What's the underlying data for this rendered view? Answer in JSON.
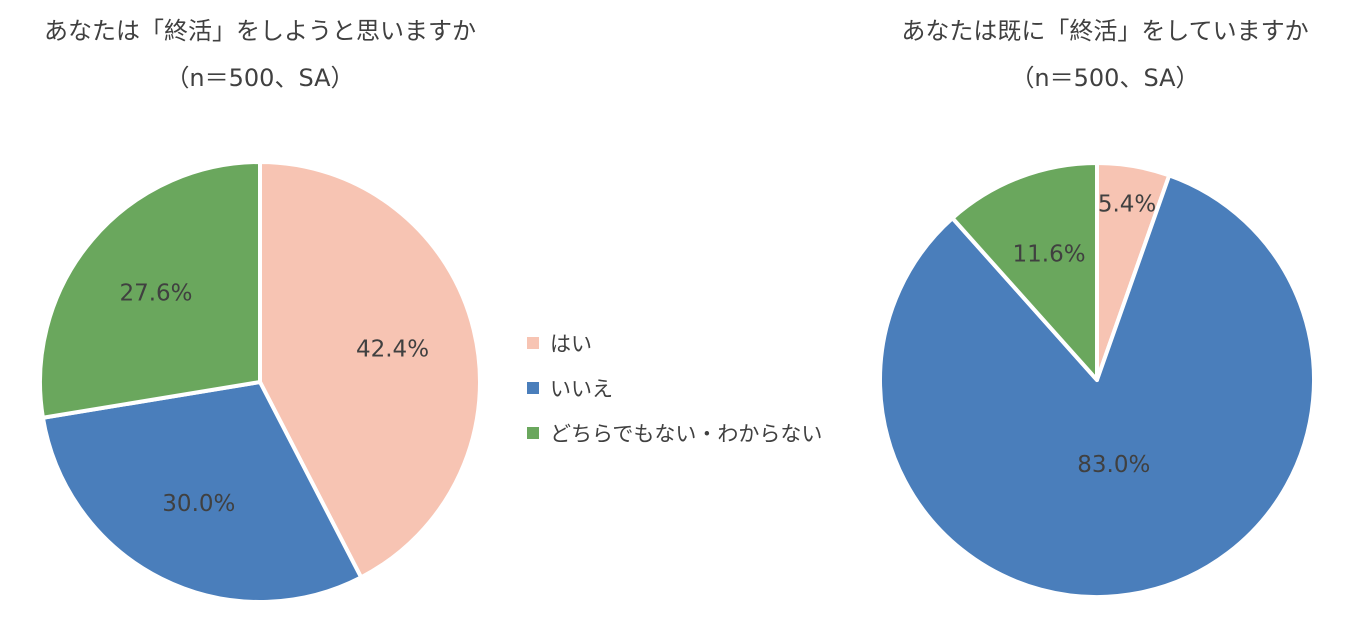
{
  "chart_data": [
    {
      "type": "pie",
      "title": "あなたは「終活」をしようと思いますか",
      "subtitle": "（n＝500、SA）",
      "categories": [
        "はい",
        "いいえ",
        "どちらでもない・わからない"
      ],
      "values": [
        42.4,
        30.0,
        27.6
      ],
      "data_labels": [
        "42.4%",
        "30.0%",
        "27.6%"
      ],
      "colors": [
        "#F7C4B3",
        "#4A7EBB",
        "#6AA75D"
      ],
      "start_angle": "12 o'clock",
      "direction": "clockwise",
      "legend": "right"
    },
    {
      "type": "pie",
      "title": "あなたは既に「終活」をしていますか",
      "subtitle": "（n＝500、SA）",
      "categories": [
        "はい",
        "いいえ",
        "どちらでもない・わからない"
      ],
      "values": [
        5.4,
        83.0,
        11.6
      ],
      "data_labels": [
        "5.4%",
        "83.0%",
        "11.6%"
      ],
      "colors": [
        "#F7C4B3",
        "#4A7EBB",
        "#6AA75D"
      ],
      "start_angle": "12 o'clock",
      "direction": "clockwise",
      "legend": "shared"
    }
  ],
  "legend": {
    "items": [
      {
        "label": "はい",
        "color": "#F7C4B3"
      },
      {
        "label": "いいえ",
        "color": "#4A7EBB"
      },
      {
        "label": "どちらでもない・わからない",
        "color": "#6AA75D"
      }
    ]
  }
}
